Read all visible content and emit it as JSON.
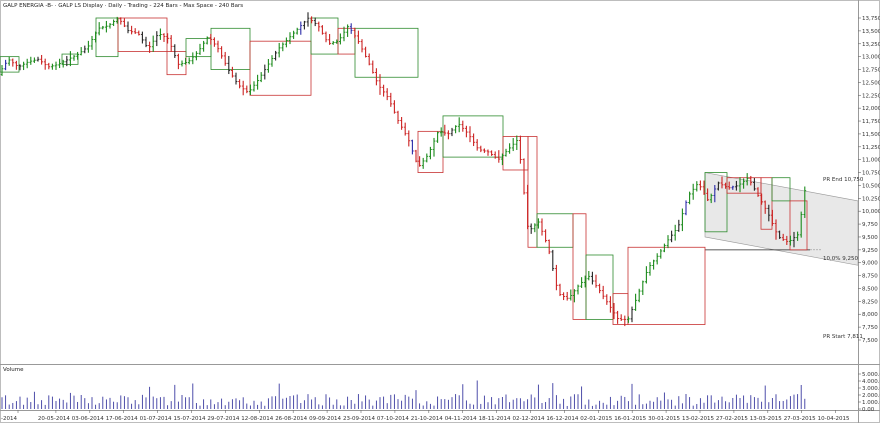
{
  "header": {
    "title": "GALP ENERGIA -B-  ·  GALP LS Display  ·  Daily - Trading - 224 Bars - Max Space - 240 Bars"
  },
  "volume_panel": {
    "title": "Volume"
  },
  "annotations": {
    "pr_end": "PR End 10,750",
    "pr_level": "10,0% 9,250",
    "pr_start": "PR Start 7,811"
  },
  "colors": {
    "bull": "#1a8a1a",
    "bear": "#cc2222",
    "neutral": "#2a2aa8",
    "black": "#222222",
    "box_green": "#2e8b2e",
    "box_red": "#c83232",
    "channel_fill": "#e8e8e8",
    "volume_bar": "#3a3aa0"
  },
  "chart_data": {
    "type": "ohlc",
    "title": "GALP ENERGIA -B- GALP LS",
    "y_axis": {
      "ticks": [
        "13,750",
        "13,500",
        "13,250",
        "13,000",
        "12,750",
        "12,500",
        "12,250",
        "12,000",
        "11,750",
        "11,500",
        "11,250",
        "11,000",
        "10,750",
        "10,500",
        "10,250",
        "10,000",
        "9,750",
        "9,500",
        "9,250",
        "9,000",
        "8,750",
        "8,500",
        "8,250",
        "8,000",
        "7,750",
        "7,500"
      ],
      "ylim": [
        7.5,
        13.75
      ]
    },
    "x_axis": {
      "ticks": [
        "-2014",
        "20-05-2014",
        "03-06-2014",
        "17-06-2014",
        "01-07-2014",
        "15-07-2014",
        "29-07-2014",
        "12-08-2014",
        "26-08-2014",
        "09-09-2014",
        "23-09-2014",
        "07-10-2014",
        "21-10-2014",
        "04-11-2014",
        "18-11-2014",
        "02-12-2014",
        "16-12-2014",
        "02-01-2015",
        "16-01-2015",
        "30-01-2015",
        "13-02-2015",
        "27-02-2015",
        "13-03-2015",
        "27-03-2015",
        "10-04-2015"
      ]
    },
    "volume_axis": {
      "ticks": [
        "5.000.00",
        "4.000.00",
        "3.000.00",
        "2.000.00",
        "1.000.00",
        "0.00"
      ]
    },
    "price_path": [
      [
        0,
        12.65
      ],
      [
        10,
        12.95
      ],
      [
        20,
        12.8
      ],
      [
        30,
        12.9
      ],
      [
        40,
        12.95
      ],
      [
        50,
        12.8
      ],
      [
        60,
        12.85
      ],
      [
        70,
        12.95
      ],
      [
        80,
        13.05
      ],
      [
        90,
        13.2
      ],
      [
        100,
        13.55
      ],
      [
        110,
        13.6
      ],
      [
        120,
        13.75
      ],
      [
        130,
        13.5
      ],
      [
        140,
        13.45
      ],
      [
        150,
        13.15
      ],
      [
        160,
        13.45
      ],
      [
        170,
        13.35
      ],
      [
        180,
        12.85
      ],
      [
        190,
        12.9
      ],
      [
        200,
        13.1
      ],
      [
        210,
        13.4
      ],
      [
        220,
        13.15
      ],
      [
        230,
        12.75
      ],
      [
        240,
        12.45
      ],
      [
        250,
        12.3
      ],
      [
        260,
        12.55
      ],
      [
        270,
        12.85
      ],
      [
        280,
        13.15
      ],
      [
        290,
        13.35
      ],
      [
        300,
        13.55
      ],
      [
        310,
        13.75
      ],
      [
        320,
        13.6
      ],
      [
        330,
        13.25
      ],
      [
        340,
        13.3
      ],
      [
        350,
        13.6
      ],
      [
        360,
        13.3
      ],
      [
        370,
        12.9
      ],
      [
        380,
        12.45
      ],
      [
        390,
        12.2
      ],
      [
        400,
        11.75
      ],
      [
        410,
        11.4
      ],
      [
        420,
        10.85
      ],
      [
        430,
        11.1
      ],
      [
        440,
        11.55
      ],
      [
        450,
        11.5
      ],
      [
        460,
        11.7
      ],
      [
        470,
        11.5
      ],
      [
        480,
        11.2
      ],
      [
        490,
        11.15
      ],
      [
        500,
        11.0
      ],
      [
        510,
        11.2
      ],
      [
        520,
        11.4
      ],
      [
        530,
        9.6
      ],
      [
        540,
        9.8
      ],
      [
        550,
        9.3
      ],
      [
        560,
        8.4
      ],
      [
        570,
        8.3
      ],
      [
        580,
        8.55
      ],
      [
        590,
        8.75
      ],
      [
        600,
        8.5
      ],
      [
        610,
        8.2
      ],
      [
        620,
        7.9
      ],
      [
        630,
        7.9
      ],
      [
        640,
        8.4
      ],
      [
        650,
        8.9
      ],
      [
        660,
        9.15
      ],
      [
        670,
        9.45
      ],
      [
        680,
        9.7
      ],
      [
        690,
        10.3
      ],
      [
        700,
        10.55
      ],
      [
        710,
        10.2
      ],
      [
        720,
        10.55
      ],
      [
        730,
        10.45
      ],
      [
        740,
        10.5
      ],
      [
        750,
        10.65
      ],
      [
        760,
        10.3
      ],
      [
        770,
        9.95
      ],
      [
        780,
        9.5
      ],
      [
        790,
        9.4
      ],
      [
        800,
        9.55
      ],
      [
        807,
        10.45
      ]
    ],
    "boxes": [
      {
        "x0": 0,
        "x1": 19,
        "lo": 12.7,
        "hi": 13.0,
        "dir": "up"
      },
      {
        "x0": 62,
        "x1": 78,
        "lo": 12.85,
        "hi": 13.05,
        "dir": "up"
      },
      {
        "x0": 96,
        "x1": 118,
        "lo": 13.0,
        "hi": 13.75,
        "dir": "up"
      },
      {
        "x0": 118,
        "x1": 167,
        "lo": 13.1,
        "hi": 13.75,
        "dir": "down"
      },
      {
        "x0": 167,
        "x1": 186,
        "lo": 12.65,
        "hi": 13.1,
        "dir": "down"
      },
      {
        "x0": 186,
        "x1": 211,
        "lo": 13.0,
        "hi": 13.35,
        "dir": "up"
      },
      {
        "x0": 211,
        "x1": 250,
        "lo": 12.75,
        "hi": 13.55,
        "dir": "up"
      },
      {
        "x0": 250,
        "x1": 311,
        "lo": 12.25,
        "hi": 13.3,
        "dir": "down"
      },
      {
        "x0": 311,
        "x1": 338,
        "lo": 13.05,
        "hi": 13.75,
        "dir": "up"
      },
      {
        "x0": 338,
        "x1": 355,
        "lo": 13.05,
        "hi": 13.55,
        "dir": "down"
      },
      {
        "x0": 355,
        "x1": 418,
        "lo": 12.6,
        "hi": 13.55,
        "dir": "up"
      },
      {
        "x0": 418,
        "x1": 443,
        "lo": 10.75,
        "hi": 11.55,
        "dir": "down"
      },
      {
        "x0": 443,
        "x1": 503,
        "lo": 11.05,
        "hi": 11.85,
        "dir": "up"
      },
      {
        "x0": 503,
        "x1": 528,
        "lo": 10.8,
        "hi": 11.45,
        "dir": "down"
      },
      {
        "x0": 528,
        "x1": 537,
        "lo": 9.3,
        "hi": 11.45,
        "dir": "down"
      },
      {
        "x0": 537,
        "x1": 573,
        "lo": 9.3,
        "hi": 9.95,
        "dir": "up"
      },
      {
        "x0": 573,
        "x1": 586,
        "lo": 7.9,
        "hi": 9.95,
        "dir": "down"
      },
      {
        "x0": 586,
        "x1": 613,
        "lo": 7.9,
        "hi": 9.15,
        "dir": "up"
      },
      {
        "x0": 613,
        "x1": 628,
        "lo": 7.8,
        "hi": 8.4,
        "dir": "down"
      },
      {
        "x0": 628,
        "x1": 705,
        "lo": 7.8,
        "hi": 9.3,
        "dir": "down"
      },
      {
        "x0": 705,
        "x1": 727,
        "lo": 9.6,
        "hi": 10.75,
        "dir": "up"
      },
      {
        "x0": 727,
        "x1": 761,
        "lo": 10.35,
        "hi": 10.65,
        "dir": "down"
      },
      {
        "x0": 761,
        "x1": 772,
        "lo": 9.65,
        "hi": 10.65,
        "dir": "down"
      },
      {
        "x0": 772,
        "x1": 790,
        "lo": 10.2,
        "hi": 10.65,
        "dir": "up"
      },
      {
        "x0": 790,
        "x1": 807,
        "lo": 9.25,
        "hi": 10.2,
        "dir": "down"
      }
    ],
    "channel": {
      "x_start": 705,
      "x_end": 858,
      "upper_start": 10.75,
      "upper_end": 10.2,
      "lower_start": 9.5,
      "lower_end": 8.95
    },
    "level_line": {
      "x_start": 705,
      "x_end": 810,
      "y": 9.25
    }
  }
}
